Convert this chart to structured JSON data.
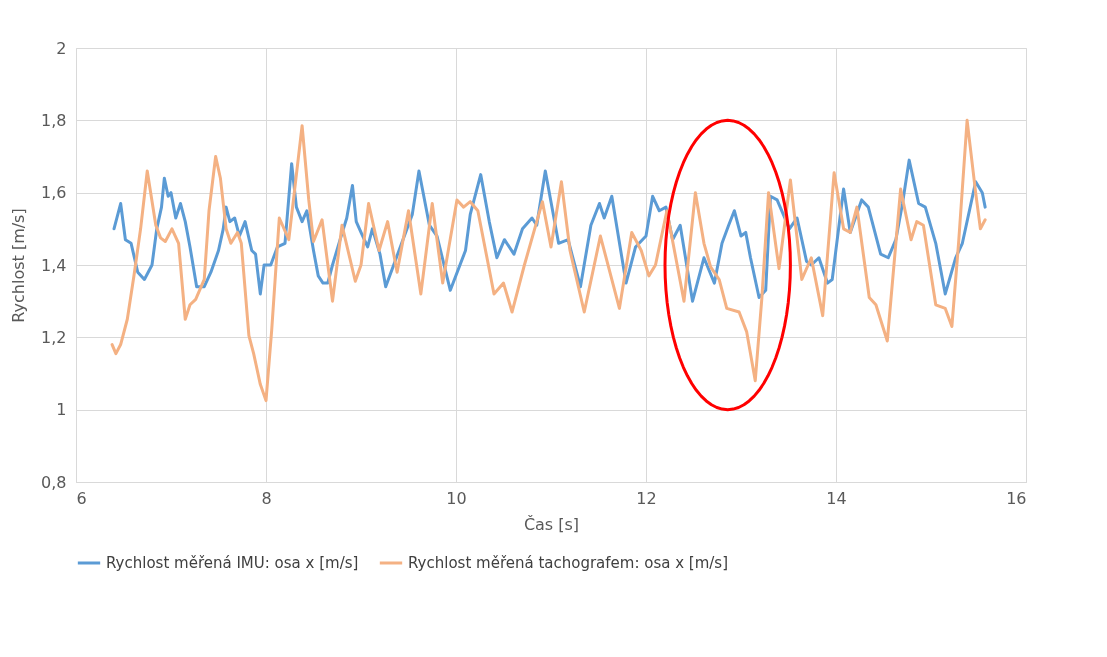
{
  "chart_data": {
    "type": "line",
    "xlabel": "Čas [s]",
    "ylabel": "Rychlost [m/s]",
    "xlim": [
      6,
      16
    ],
    "xticks": [
      6,
      8,
      10,
      12,
      14,
      16
    ],
    "ylim": [
      0.8,
      2
    ],
    "yticks": [
      {
        "value": 0.8,
        "label": "0,8"
      },
      1,
      {
        "value": 1.2,
        "label": "1,2"
      },
      {
        "value": 1.4,
        "label": "1,4"
      },
      {
        "value": 1.6,
        "label": "1,6"
      },
      {
        "value": 1.8,
        "label": "1,8"
      },
      2
    ],
    "grid": true,
    "legend": "bottom",
    "marker": "none",
    "line_style": "solid",
    "series": [
      {
        "name": "Rychlost měřená IMU: osa x [m/s]",
        "color": "#5b9bd5",
        "x": [
          6.4,
          6.47,
          6.52,
          6.58,
          6.65,
          6.72,
          6.8,
          6.85,
          6.9,
          6.93,
          6.97,
          7.0,
          7.05,
          7.1,
          7.15,
          7.2,
          7.27,
          7.35,
          7.42,
          7.5,
          7.55,
          7.58,
          7.62,
          7.67,
          7.72,
          7.78,
          7.85,
          7.89,
          7.94,
          7.98,
          8.05,
          8.12,
          8.2,
          8.27,
          8.32,
          8.38,
          8.43,
          8.5,
          8.55,
          8.6,
          8.65,
          8.7,
          8.78,
          8.85,
          8.91,
          8.95,
          9.0,
          9.07,
          9.12,
          9.2,
          9.26,
          9.4,
          9.54,
          9.61,
          9.72,
          9.8,
          9.94,
          10.1,
          10.15,
          10.26,
          10.35,
          10.43,
          10.51,
          10.61,
          10.7,
          10.8,
          10.85,
          10.94,
          11.08,
          11.18,
          11.31,
          11.42,
          11.51,
          11.56,
          11.64,
          11.79,
          11.89,
          12.0,
          12.07,
          12.14,
          12.21,
          12.28,
          12.36,
          12.49,
          12.61,
          12.72,
          12.8,
          12.87,
          12.93,
          13.0,
          13.05,
          13.1,
          13.19,
          13.26,
          13.31,
          13.38,
          13.51,
          13.59,
          13.69,
          13.74,
          13.82,
          13.91,
          13.96,
          14.08,
          14.15,
          14.27,
          14.34,
          14.47,
          14.55,
          14.63,
          14.7,
          14.77,
          14.87,
          14.94,
          15.05,
          15.15,
          15.26,
          15.33,
          15.47,
          15.54,
          15.57
        ],
        "values": [
          1.5,
          1.57,
          1.47,
          1.46,
          1.38,
          1.36,
          1.4,
          1.5,
          1.56,
          1.64,
          1.59,
          1.6,
          1.53,
          1.57,
          1.52,
          1.45,
          1.34,
          1.34,
          1.38,
          1.44,
          1.5,
          1.56,
          1.52,
          1.53,
          1.48,
          1.52,
          1.44,
          1.43,
          1.32,
          1.4,
          1.4,
          1.45,
          1.46,
          1.68,
          1.56,
          1.52,
          1.55,
          1.44,
          1.37,
          1.35,
          1.35,
          1.4,
          1.47,
          1.53,
          1.62,
          1.52,
          1.49,
          1.45,
          1.5,
          1.43,
          1.34,
          1.44,
          1.54,
          1.66,
          1.51,
          1.48,
          1.33,
          1.44,
          1.54,
          1.65,
          1.52,
          1.42,
          1.47,
          1.43,
          1.5,
          1.53,
          1.51,
          1.66,
          1.46,
          1.47,
          1.34,
          1.51,
          1.57,
          1.53,
          1.59,
          1.35,
          1.45,
          1.48,
          1.59,
          1.55,
          1.56,
          1.47,
          1.51,
          1.3,
          1.42,
          1.35,
          1.46,
          1.51,
          1.55,
          1.48,
          1.49,
          1.42,
          1.31,
          1.33,
          1.59,
          1.58,
          1.5,
          1.53,
          1.41,
          1.4,
          1.42,
          1.35,
          1.36,
          1.61,
          1.49,
          1.58,
          1.56,
          1.43,
          1.42,
          1.47,
          1.57,
          1.69,
          1.57,
          1.56,
          1.46,
          1.32,
          1.42,
          1.46,
          1.63,
          1.6,
          1.56
        ]
      },
      {
        "name": "Rychlost měřená tachografem: osa x [m/s]",
        "color": "#f4b183",
        "x": [
          6.38,
          6.42,
          6.47,
          6.54,
          6.61,
          6.68,
          6.75,
          6.84,
          6.89,
          6.94,
          7.01,
          7.08,
          7.15,
          7.2,
          7.26,
          7.35,
          7.4,
          7.47,
          7.52,
          7.58,
          7.63,
          7.7,
          7.74,
          7.82,
          7.87,
          7.94,
          8.0,
          8.06,
          8.14,
          8.24,
          8.38,
          8.45,
          8.5,
          8.59,
          8.7,
          8.8,
          8.94,
          9.0,
          9.08,
          9.19,
          9.28,
          9.38,
          9.5,
          9.63,
          9.75,
          9.86,
          10.01,
          10.08,
          10.15,
          10.23,
          10.4,
          10.5,
          10.59,
          10.72,
          10.91,
          11.0,
          11.11,
          11.2,
          11.35,
          11.52,
          11.72,
          11.85,
          11.95,
          12.03,
          12.1,
          12.22,
          12.4,
          12.52,
          12.61,
          12.68,
          12.77,
          12.85,
          12.98,
          13.06,
          13.15,
          13.22,
          13.29,
          13.4,
          13.52,
          13.64,
          13.74,
          13.86,
          13.98,
          14.08,
          14.15,
          14.22,
          14.35,
          14.42,
          14.54,
          14.68,
          14.79,
          14.85,
          14.92,
          15.05,
          15.15,
          15.22,
          15.29,
          15.38,
          15.47,
          15.52,
          15.57
        ],
        "values": [
          1.18,
          1.155,
          1.18,
          1.25,
          1.37,
          1.5,
          1.66,
          1.51,
          1.475,
          1.465,
          1.5,
          1.46,
          1.25,
          1.29,
          1.305,
          1.36,
          1.55,
          1.7,
          1.64,
          1.5,
          1.46,
          1.49,
          1.46,
          1.205,
          1.155,
          1.07,
          1.025,
          1.22,
          1.53,
          1.47,
          1.785,
          1.58,
          1.465,
          1.525,
          1.3,
          1.51,
          1.355,
          1.4,
          1.57,
          1.44,
          1.52,
          1.38,
          1.55,
          1.32,
          1.57,
          1.35,
          1.58,
          1.56,
          1.575,
          1.55,
          1.32,
          1.35,
          1.27,
          1.4,
          1.575,
          1.45,
          1.63,
          1.44,
          1.27,
          1.48,
          1.28,
          1.49,
          1.44,
          1.37,
          1.4,
          1.55,
          1.3,
          1.6,
          1.46,
          1.395,
          1.36,
          1.28,
          1.27,
          1.215,
          1.08,
          1.31,
          1.6,
          1.39,
          1.635,
          1.36,
          1.42,
          1.26,
          1.655,
          1.5,
          1.49,
          1.56,
          1.31,
          1.29,
          1.19,
          1.61,
          1.47,
          1.52,
          1.51,
          1.29,
          1.28,
          1.23,
          1.46,
          1.8,
          1.6,
          1.5,
          1.525
        ]
      }
    ]
  }
}
